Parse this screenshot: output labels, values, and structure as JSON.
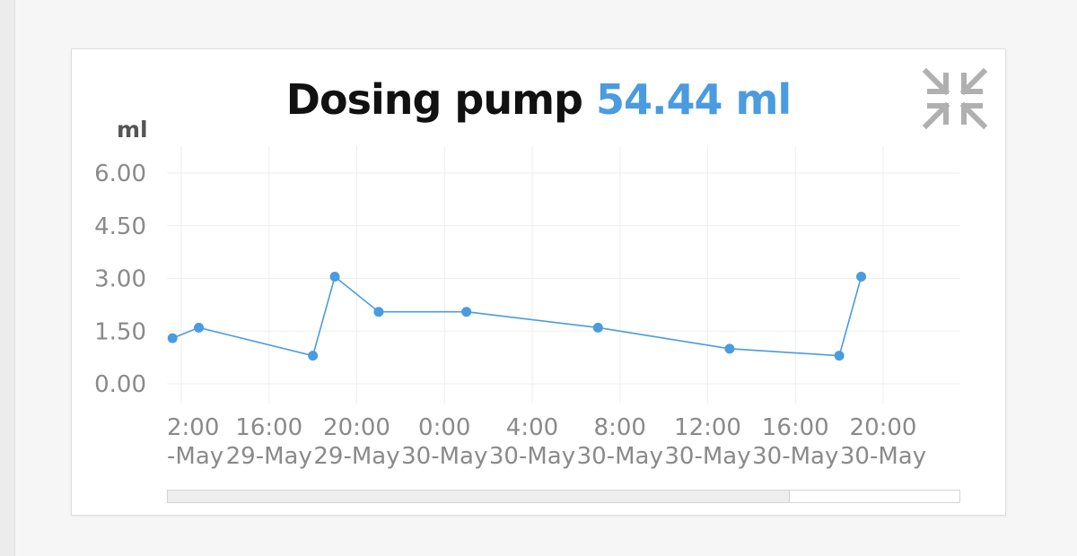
{
  "header": {
    "title": "Dosing pump",
    "current_value": "54.44 ml",
    "collapse_icon": "collapse-arrows-icon"
  },
  "chart_data": {
    "type": "line",
    "ylabel": "ml",
    "ylim": [
      0,
      6
    ],
    "yticks": [
      "6.00",
      "4.50",
      "3.00",
      "1.50",
      "0.00"
    ],
    "xticks": [
      {
        "time": "2:00",
        "date": "-May"
      },
      {
        "time": "16:00",
        "date": "29-May"
      },
      {
        "time": "20:00",
        "date": "29-May"
      },
      {
        "time": "0:00",
        "date": "30-May"
      },
      {
        "time": "4:00",
        "date": "30-May"
      },
      {
        "time": "8:00",
        "date": "30-May"
      },
      {
        "time": "12:00",
        "date": "30-May"
      },
      {
        "time": "16:00",
        "date": "30-May"
      },
      {
        "time": "20:00",
        "date": "30-May"
      }
    ],
    "x_hours": [
      11.6,
      12.8,
      18.0,
      19.0,
      21.0,
      25.0,
      31.0,
      37.0,
      42.0,
      43.0
    ],
    "y": [
      1.3,
      1.6,
      0.8,
      3.05,
      2.05,
      2.05,
      1.6,
      1.0,
      0.8,
      3.05
    ],
    "grid": true,
    "color": "#4a9be0",
    "scroll_fraction": 0.786
  }
}
